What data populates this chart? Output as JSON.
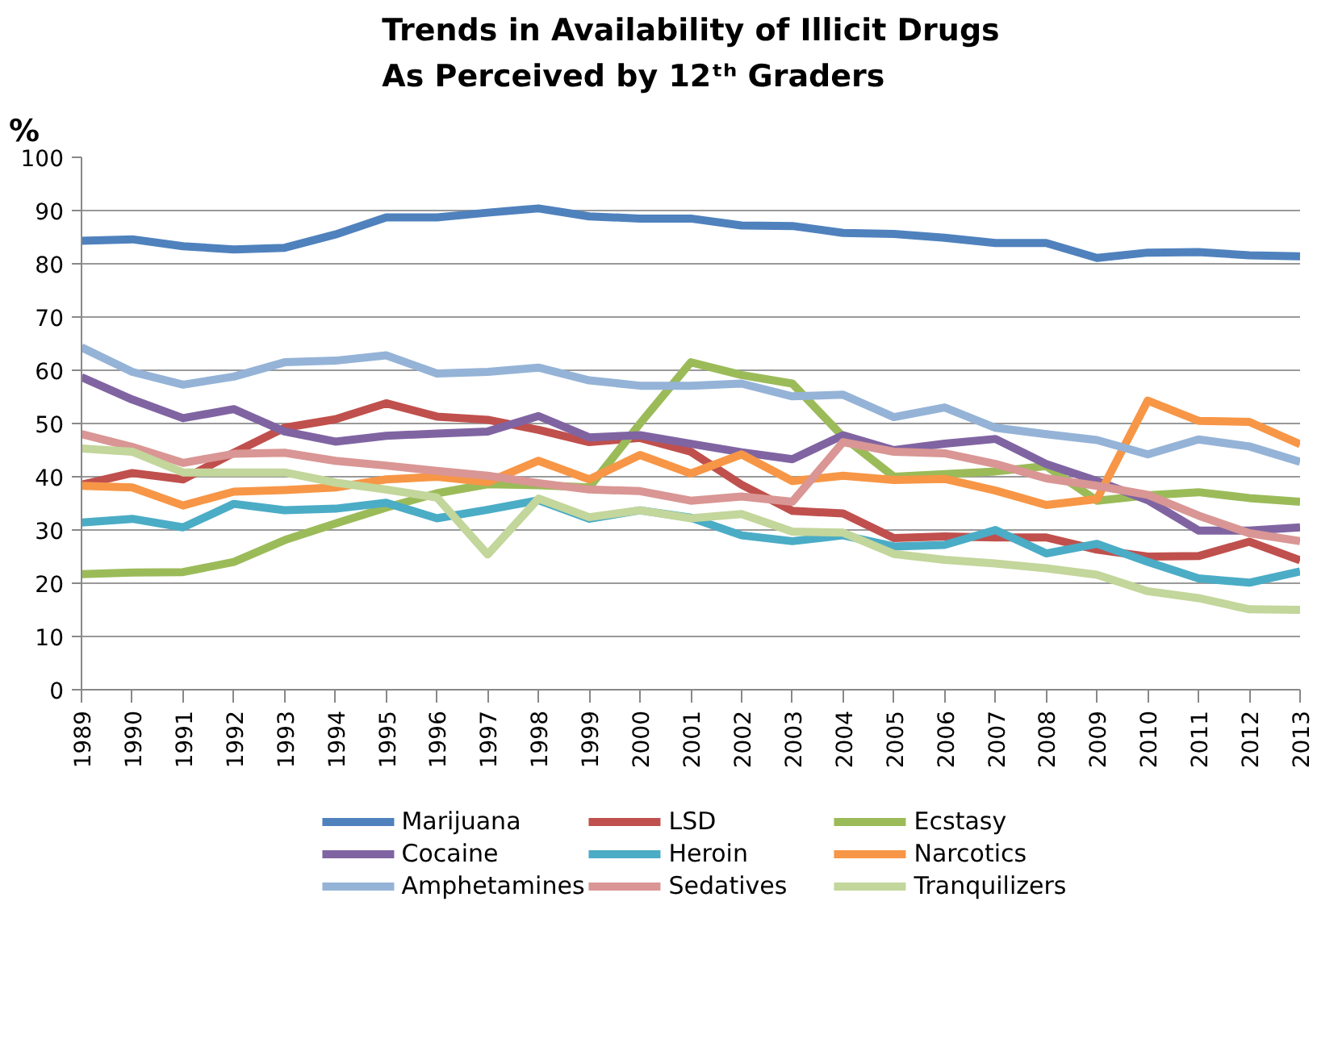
{
  "chart_data": {
    "type": "line",
    "title": "Trends in Availability of Illicit Drugs\nAs Perceived by 12ᵗʰ Graders",
    "ylabel": "%",
    "x": [
      1989,
      1990,
      1991,
      1992,
      1993,
      1994,
      1995,
      1996,
      1997,
      1998,
      1999,
      2000,
      2001,
      2002,
      2003,
      2004,
      2005,
      2006,
      2007,
      2008,
      2009,
      2010,
      2011,
      2012,
      2013
    ],
    "xlim": [
      1989,
      2013
    ],
    "xticks": [
      1989,
      1990,
      1991,
      1992,
      1993,
      1994,
      1995,
      1996,
      1997,
      1998,
      1999,
      2000,
      2001,
      2002,
      2003,
      2004,
      2005,
      2006,
      2007,
      2008,
      2009,
      2010,
      2011,
      2012,
      2013
    ],
    "ylim": [
      0,
      100
    ],
    "yticks": [
      0,
      10,
      20,
      30,
      40,
      50,
      60,
      70,
      80,
      90,
      100
    ],
    "grid": "y",
    "legend": "bottom",
    "marker": "none",
    "line_style": "solid",
    "series": [
      {
        "name": "Marijuana",
        "color": "#4f81bd",
        "values": [
          84.3,
          84.6,
          83.3,
          82.7,
          83.0,
          85.5,
          88.7,
          88.7,
          89.6,
          90.4,
          88.9,
          88.5,
          88.5,
          87.2,
          87.1,
          85.8,
          85.6,
          84.9,
          83.9,
          83.9,
          81.1,
          82.1,
          82.2,
          81.6,
          81.4
        ]
      },
      {
        "name": "LSD",
        "color": "#c0504d",
        "values": [
          38.5,
          40.7,
          39.5,
          44.5,
          49.2,
          50.8,
          53.8,
          51.3,
          50.7,
          48.8,
          46.5,
          47.3,
          44.7,
          38.5,
          33.6,
          33.1,
          28.5,
          28.8,
          28.6,
          28.6,
          26.3,
          25.0,
          25.1,
          27.8,
          24.3
        ]
      },
      {
        "name": "Ecstasy",
        "color": "#9bbb59",
        "values": [
          21.7,
          22.0,
          22.1,
          24.0,
          28.1,
          31.2,
          34.2,
          36.9,
          38.6,
          38.4,
          38.0,
          50.0,
          61.5,
          59.1,
          57.5,
          47.5,
          40.0,
          40.5,
          41.0,
          42.0,
          35.5,
          36.5,
          37.1,
          36.0,
          35.3
        ]
      },
      {
        "name": "Cocaine",
        "color": "#8064a2",
        "values": [
          58.7,
          54.5,
          51.0,
          52.7,
          48.5,
          46.6,
          47.7,
          48.1,
          48.5,
          51.4,
          47.4,
          47.8,
          46.2,
          44.6,
          43.3,
          47.8,
          45.0,
          46.2,
          47.1,
          42.4,
          39.2,
          35.6,
          29.9,
          29.9,
          30.5
        ]
      },
      {
        "name": "Heroin",
        "color": "#4bacc6",
        "values": [
          31.4,
          32.1,
          30.5,
          34.9,
          33.7,
          34.0,
          35.1,
          32.2,
          33.8,
          35.6,
          32.1,
          33.7,
          32.3,
          29.0,
          27.9,
          29.0,
          26.9,
          27.2,
          30.0,
          25.6,
          27.4,
          24.0,
          20.9,
          20.1,
          22.2
        ]
      },
      {
        "name": "Narcotics",
        "color": "#f79646",
        "values": [
          38.3,
          38.0,
          34.6,
          37.2,
          37.5,
          38.0,
          39.5,
          40.0,
          39.0,
          43.0,
          39.5,
          44.1,
          40.6,
          44.2,
          39.2,
          40.2,
          39.4,
          39.6,
          37.4,
          34.7,
          35.8,
          54.3,
          50.5,
          50.3,
          46.1
        ]
      },
      {
        "name": "Amphetamines",
        "color": "#95b3d7",
        "values": [
          64.3,
          59.7,
          57.3,
          58.8,
          61.5,
          61.8,
          62.8,
          59.4,
          59.7,
          60.5,
          58.1,
          57.1,
          57.1,
          57.5,
          55.1,
          55.4,
          51.2,
          53.0,
          49.2,
          48.0,
          46.9,
          44.2,
          47.0,
          45.7,
          42.8
        ]
      },
      {
        "name": "Sedatives",
        "color": "#d99694",
        "values": [
          48.0,
          45.6,
          42.6,
          44.3,
          44.5,
          43.0,
          42.1,
          41.1,
          40.2,
          38.8,
          37.6,
          37.3,
          35.5,
          36.3,
          35.3,
          46.5,
          44.7,
          44.4,
          42.4,
          39.7,
          38.3,
          36.6,
          32.7,
          29.4,
          27.9
        ]
      },
      {
        "name": "Tranquilizers",
        "color": "#c3d69b",
        "values": [
          45.3,
          44.7,
          40.8,
          40.8,
          40.8,
          38.9,
          37.6,
          36.1,
          25.4,
          35.9,
          32.4,
          33.7,
          32.2,
          33.0,
          29.7,
          29.5,
          25.5,
          24.4,
          23.7,
          22.8,
          21.6,
          18.5,
          17.2,
          15.1,
          15.0
        ]
      }
    ]
  }
}
